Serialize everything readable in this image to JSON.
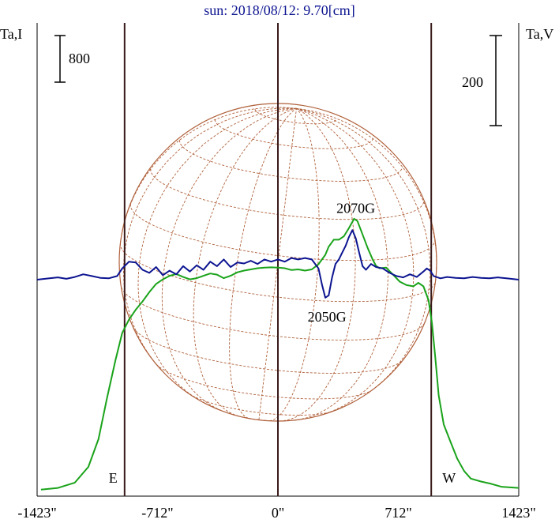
{
  "chart_data": {
    "type": "line",
    "title": "sun: 2018/08/12: 9.70[cm]",
    "left_axis_label": "Ta,I",
    "right_axis_label": "Ta,V",
    "x_ticks": [
      {
        "value": -1423,
        "label": "-1423\""
      },
      {
        "value": -712,
        "label": "-712\""
      },
      {
        "value": 0,
        "label": "0\""
      },
      {
        "value": 712,
        "label": "712\""
      },
      {
        "value": 1423,
        "label": "1423\""
      }
    ],
    "xlim": [
      -1423,
      1423
    ],
    "vertical_lines": [
      {
        "x": -906,
        "label": "E"
      },
      {
        "x": 0,
        "label": ""
      },
      {
        "x": 906,
        "label": "W"
      }
    ],
    "scale_bar_I": {
      "label": "800",
      "value": 800
    },
    "scale_bar_V": {
      "label": "200",
      "value": 200
    },
    "colors": {
      "I": "#1aa31a",
      "V": "#0c1490",
      "grid_lines": "#3a1a1a",
      "solar_disk": "#b0603a",
      "axes": "#000000"
    },
    "series": [
      {
        "key": "I",
        "points": [
          [
            -1400,
            30
          ],
          [
            -1300,
            60
          ],
          [
            -1200,
            150
          ],
          [
            -1120,
            420
          ],
          [
            -1060,
            900
          ],
          [
            -1010,
            1600
          ],
          [
            -960,
            2250
          ],
          [
            -920,
            2720
          ],
          [
            -880,
            2950
          ],
          [
            -840,
            3120
          ],
          [
            -800,
            3260
          ],
          [
            -760,
            3420
          ],
          [
            -720,
            3560
          ],
          [
            -680,
            3640
          ],
          [
            -640,
            3700
          ],
          [
            -600,
            3730
          ],
          [
            -560,
            3680
          ],
          [
            -520,
            3640
          ],
          [
            -480,
            3660
          ],
          [
            -440,
            3700
          ],
          [
            -400,
            3740
          ],
          [
            -360,
            3720
          ],
          [
            -320,
            3660
          ],
          [
            -280,
            3700
          ],
          [
            -240,
            3760
          ],
          [
            -200,
            3790
          ],
          [
            -160,
            3810
          ],
          [
            -120,
            3830
          ],
          [
            -80,
            3840
          ],
          [
            -40,
            3845
          ],
          [
            0,
            3840
          ],
          [
            40,
            3830
          ],
          [
            80,
            3800
          ],
          [
            120,
            3810
          ],
          [
            160,
            3790
          ],
          [
            200,
            3810
          ],
          [
            240,
            3900
          ],
          [
            280,
            4060
          ],
          [
            300,
            4200
          ],
          [
            330,
            4320
          ],
          [
            360,
            4320
          ],
          [
            390,
            4380
          ],
          [
            420,
            4520
          ],
          [
            450,
            4680
          ],
          [
            470,
            4640
          ],
          [
            500,
            4410
          ],
          [
            530,
            4180
          ],
          [
            560,
            3980
          ],
          [
            580,
            3870
          ],
          [
            600,
            3830
          ],
          [
            640,
            3840
          ],
          [
            680,
            3720
          ],
          [
            720,
            3600
          ],
          [
            760,
            3540
          ],
          [
            800,
            3520
          ],
          [
            830,
            3580
          ],
          [
            860,
            3520
          ],
          [
            890,
            3280
          ],
          [
            910,
            2900
          ],
          [
            930,
            2300
          ],
          [
            950,
            1650
          ],
          [
            980,
            1150
          ],
          [
            1020,
            850
          ],
          [
            1060,
            560
          ],
          [
            1100,
            350
          ],
          [
            1140,
            220
          ],
          [
            1200,
            170
          ],
          [
            1260,
            130
          ],
          [
            1320,
            80
          ],
          [
            1423,
            60
          ]
        ]
      },
      {
        "key": "V",
        "points": [
          [
            -1423,
            0
          ],
          [
            -1350,
            3
          ],
          [
            -1300,
            5
          ],
          [
            -1250,
            2
          ],
          [
            -1200,
            6
          ],
          [
            -1150,
            12
          ],
          [
            -1100,
            8
          ],
          [
            -1050,
            4
          ],
          [
            -1000,
            3
          ],
          [
            -950,
            8
          ],
          [
            -920,
            25
          ],
          [
            -880,
            40
          ],
          [
            -840,
            38
          ],
          [
            -800,
            22
          ],
          [
            -760,
            15
          ],
          [
            -720,
            28
          ],
          [
            -680,
            10
          ],
          [
            -640,
            20
          ],
          [
            -600,
            12
          ],
          [
            -560,
            30
          ],
          [
            -520,
            18
          ],
          [
            -480,
            32
          ],
          [
            -440,
            22
          ],
          [
            -400,
            40
          ],
          [
            -360,
            30
          ],
          [
            -320,
            45
          ],
          [
            -280,
            28
          ],
          [
            -240,
            38
          ],
          [
            -200,
            36
          ],
          [
            -160,
            42
          ],
          [
            -120,
            35
          ],
          [
            -80,
            45
          ],
          [
            -40,
            40
          ],
          [
            0,
            45
          ],
          [
            40,
            40
          ],
          [
            80,
            48
          ],
          [
            120,
            45
          ],
          [
            160,
            48
          ],
          [
            200,
            45
          ],
          [
            240,
            25
          ],
          [
            260,
            -10
          ],
          [
            280,
            -40
          ],
          [
            300,
            -35
          ],
          [
            320,
            5
          ],
          [
            340,
            35
          ],
          [
            360,
            45
          ],
          [
            380,
            60
          ],
          [
            400,
            75
          ],
          [
            420,
            95
          ],
          [
            440,
            110
          ],
          [
            460,
            92
          ],
          [
            480,
            60
          ],
          [
            500,
            30
          ],
          [
            520,
            22
          ],
          [
            550,
            35
          ],
          [
            580,
            28
          ],
          [
            620,
            25
          ],
          [
            660,
            15
          ],
          [
            700,
            8
          ],
          [
            740,
            5
          ],
          [
            780,
            12
          ],
          [
            820,
            6
          ],
          [
            860,
            18
          ],
          [
            880,
            25
          ],
          [
            900,
            20
          ],
          [
            920,
            8
          ],
          [
            960,
            3
          ],
          [
            1000,
            6
          ],
          [
            1050,
            4
          ],
          [
            1100,
            3
          ],
          [
            1150,
            6
          ],
          [
            1200,
            4
          ],
          [
            1250,
            3
          ],
          [
            1300,
            5
          ],
          [
            1350,
            3
          ],
          [
            1423,
            0
          ]
        ]
      }
    ],
    "annotations": [
      {
        "text": "2070G",
        "x": 460,
        "y_V": 110
      },
      {
        "text": "2050G",
        "x": 290,
        "y_V": -40
      }
    ]
  }
}
